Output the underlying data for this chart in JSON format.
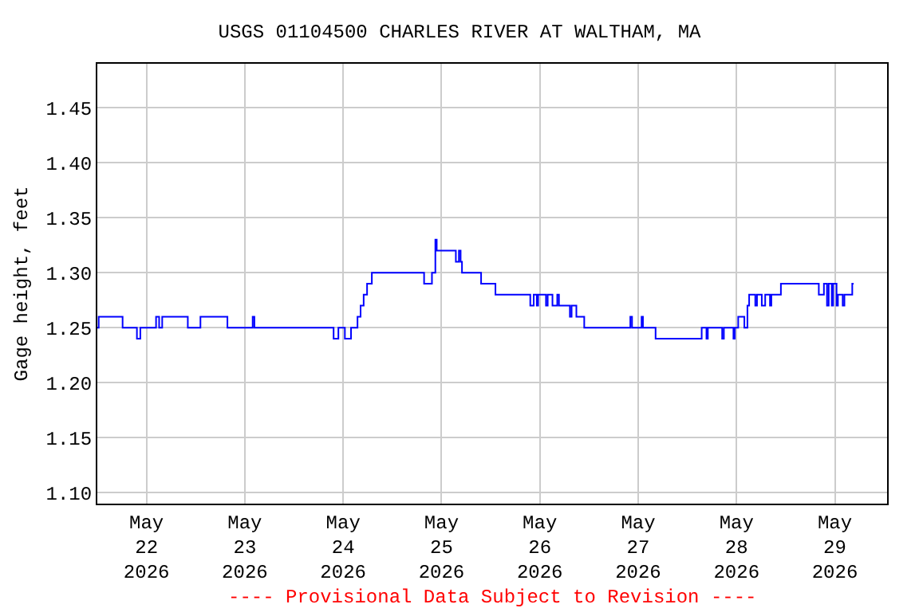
{
  "chart_data": {
    "type": "step",
    "title": "USGS 01104500 CHARLES RIVER AT WALTHAM, MA",
    "ylabel": "Gage height, feet",
    "annotations": [
      "---- Provisional Data Subject to Revision ----"
    ],
    "x": [
      "2026-05-21T12:00",
      "2026-05-21T12:20",
      "2026-05-21T18:10",
      "2026-05-21T21:40",
      "2026-05-21T22:30",
      "2026-05-22T02:20",
      "2026-05-22T03:05",
      "2026-05-22T03:50",
      "2026-05-22T10:05",
      "2026-05-22T13:10",
      "2026-05-22T19:45",
      "2026-05-23T01:55",
      "2026-05-23T02:20",
      "2026-05-23T21:40",
      "2026-05-23T22:50",
      "2026-05-24T00:25",
      "2026-05-24T01:55",
      "2026-05-24T03:30",
      "2026-05-24T04:15",
      "2026-05-24T05:00",
      "2026-05-24T05:50",
      "2026-05-24T07:00",
      "2026-05-24T19:45",
      "2026-05-24T21:40",
      "2026-05-24T22:30",
      "2026-05-24T22:50",
      "2026-05-25T03:30",
      "2026-05-25T04:15",
      "2026-05-25T04:40",
      "2026-05-25T05:00",
      "2026-05-25T09:40",
      "2026-05-25T13:10",
      "2026-05-25T21:40",
      "2026-05-25T22:30",
      "2026-05-25T23:15",
      "2026-05-25T23:35",
      "2026-05-26T01:30",
      "2026-05-26T01:55",
      "2026-05-26T03:05",
      "2026-05-26T04:15",
      "2026-05-26T04:40",
      "2026-05-26T07:20",
      "2026-05-26T07:45",
      "2026-05-26T08:55",
      "2026-05-26T10:50",
      "2026-05-26T22:05",
      "2026-05-26T22:30",
      "2026-05-27T00:50",
      "2026-05-27T01:10",
      "2026-05-27T04:15",
      "2026-05-27T15:30",
      "2026-05-27T16:40",
      "2026-05-27T17:00",
      "2026-05-27T20:30",
      "2026-05-27T20:55",
      "2026-05-27T23:15",
      "2026-05-27T23:35",
      "2026-05-28T00:25",
      "2026-05-28T01:55",
      "2026-05-28T02:40",
      "2026-05-28T03:05",
      "2026-05-28T04:35",
      "2026-05-28T05:00",
      "2026-05-28T06:10",
      "2026-05-28T07:00",
      "2026-05-28T08:10",
      "2026-05-28T08:30",
      "2026-05-28T10:50",
      "2026-05-28T20:05",
      "2026-05-28T21:20",
      "2026-05-28T22:05",
      "2026-05-28T22:30",
      "2026-05-28T23:15",
      "2026-05-28T23:35",
      "2026-05-29T00:25",
      "2026-05-29T00:45",
      "2026-05-29T01:55",
      "2026-05-29T02:20",
      "2026-05-29T04:15",
      "2026-05-29T04:35"
    ],
    "series": [
      {
        "color": "#0000ff",
        "values": [
          1.25,
          1.26,
          1.25,
          1.24,
          1.25,
          1.26,
          1.25,
          1.26,
          1.25,
          1.26,
          1.25,
          1.26,
          1.25,
          1.24,
          1.25,
          1.24,
          1.25,
          1.26,
          1.27,
          1.28,
          1.29,
          1.3,
          1.29,
          1.3,
          1.33,
          1.32,
          1.31,
          1.32,
          1.31,
          1.3,
          1.29,
          1.28,
          1.27,
          1.28,
          1.27,
          1.28,
          1.27,
          1.28,
          1.27,
          1.28,
          1.27,
          1.26,
          1.27,
          1.26,
          1.25,
          1.26,
          1.25,
          1.26,
          1.25,
          1.24,
          1.25,
          1.24,
          1.25,
          1.24,
          1.25,
          1.24,
          1.25,
          1.26,
          1.25,
          1.27,
          1.28,
          1.27,
          1.28,
          1.27,
          1.28,
          1.27,
          1.28,
          1.29,
          1.28,
          1.29,
          1.27,
          1.29,
          1.27,
          1.29,
          1.27,
          1.28,
          1.27,
          1.28,
          1.29,
          1.29
        ]
      }
    ],
    "xlim": [
      "2026-05-21T12:00",
      "2026-05-29T12:45"
    ],
    "xticks": [
      {
        "value": "2026-05-22",
        "label": "May\n22\n2026"
      },
      {
        "value": "2026-05-23",
        "label": "May\n23\n2026"
      },
      {
        "value": "2026-05-24",
        "label": "May\n24\n2026"
      },
      {
        "value": "2026-05-25",
        "label": "May\n25\n2026"
      },
      {
        "value": "2026-05-26",
        "label": "May\n26\n2026"
      },
      {
        "value": "2026-05-27",
        "label": "May\n27\n2026"
      },
      {
        "value": "2026-05-28",
        "label": "May\n28\n2026"
      },
      {
        "value": "2026-05-29",
        "label": "May\n29\n2026"
      }
    ],
    "ylim": [
      1.09,
      1.49
    ],
    "yticks": [
      {
        "value": 1.1,
        "label": "1.10"
      },
      1.15,
      {
        "value": 1.2,
        "label": "1.20"
      },
      1.25,
      {
        "value": 1.3,
        "label": "1.30"
      },
      1.35,
      {
        "value": 1.4,
        "label": "1.40"
      },
      1.45
    ],
    "grid": true
  }
}
